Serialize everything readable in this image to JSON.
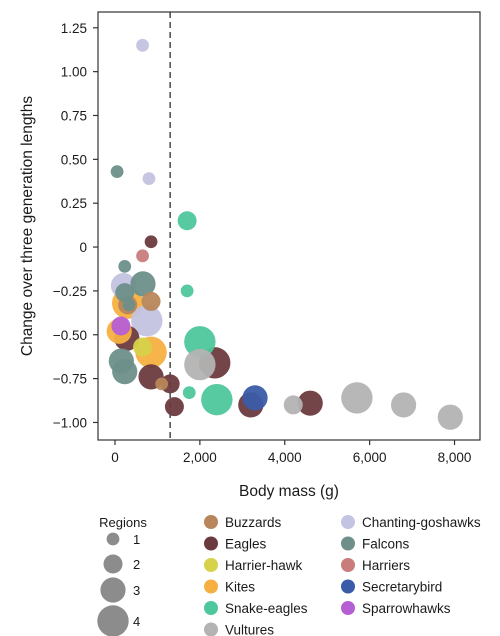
{
  "chart_data": {
    "type": "scatter",
    "xlabel": "Body mass (g)",
    "ylabel": "Change over three generation lengths",
    "xlim": [
      -400,
      8600
    ],
    "ylim": [
      -1.1,
      1.34
    ],
    "xticks": [
      0,
      2000,
      4000,
      6000,
      8000
    ],
    "xtick_labels": [
      "0",
      "2,000",
      "4,000",
      "6,000",
      "8,000"
    ],
    "yticks": [
      1.25,
      1.0,
      0.75,
      0.5,
      0.25,
      0,
      -0.25,
      -0.5,
      -0.75,
      -1.0
    ],
    "ytick_labels": [
      "1.25",
      "1.00",
      "0.75",
      "0.50",
      "0.25",
      "0",
      "−0.25",
      "−0.50",
      "−0.75",
      "−1.00"
    ],
    "reference_line": {
      "x": 1300,
      "style": "dashed"
    },
    "grid": false,
    "legend_placement": "bottom",
    "size_legend": {
      "title": "Regions",
      "values": [
        1,
        2,
        3,
        4
      ]
    },
    "series": [
      {
        "name": "Buzzards",
        "color": "#b8865a",
        "points": [
          {
            "x": 850,
            "y": -0.31,
            "regions": 2
          },
          {
            "x": 300,
            "y": -0.33,
            "regions": 2
          },
          {
            "x": 1100,
            "y": -0.78,
            "regions": 1
          }
        ]
      },
      {
        "name": "Eagles",
        "color": "#6b3a3e",
        "points": [
          {
            "x": 850,
            "y": 0.03,
            "regions": 1
          },
          {
            "x": 280,
            "y": -0.52,
            "regions": 3
          },
          {
            "x": 850,
            "y": -0.74,
            "regions": 3
          },
          {
            "x": 1300,
            "y": -0.78,
            "regions": 2
          },
          {
            "x": 1400,
            "y": -0.91,
            "regions": 2
          },
          {
            "x": 2350,
            "y": -0.66,
            "regions": 4
          },
          {
            "x": 3200,
            "y": -0.9,
            "regions": 3
          },
          {
            "x": 4600,
            "y": -0.89,
            "regions": 3
          }
        ]
      },
      {
        "name": "Harrier-hawk",
        "color": "#d6d24a",
        "points": [
          {
            "x": 650,
            "y": -0.57,
            "regions": 2
          }
        ]
      },
      {
        "name": "Kites",
        "color": "#f5b041",
        "points": [
          {
            "x": 300,
            "y": -0.32,
            "regions": 4
          },
          {
            "x": 100,
            "y": -0.48,
            "regions": 3
          },
          {
            "x": 850,
            "y": -0.6,
            "regions": 4
          }
        ]
      },
      {
        "name": "Snake-eagles",
        "color": "#4fc79c",
        "points": [
          {
            "x": 1700,
            "y": 0.15,
            "regions": 2
          },
          {
            "x": 1700,
            "y": -0.25,
            "regions": 1
          },
          {
            "x": 2000,
            "y": -0.54,
            "regions": 4
          },
          {
            "x": 1750,
            "y": -0.83,
            "regions": 1
          },
          {
            "x": 2400,
            "y": -0.87,
            "regions": 4
          }
        ]
      },
      {
        "name": "Vultures",
        "color": "#b3b3b3",
        "points": [
          {
            "x": 2000,
            "y": -0.67,
            "regions": 4
          },
          {
            "x": 4200,
            "y": -0.9,
            "regions": 2
          },
          {
            "x": 5700,
            "y": -0.86,
            "regions": 4
          },
          {
            "x": 6800,
            "y": -0.9,
            "regions": 3
          },
          {
            "x": 7900,
            "y": -0.97,
            "regions": 3
          }
        ]
      },
      {
        "name": "Chanting-goshawks",
        "color": "#c3c3e2",
        "points": [
          {
            "x": 650,
            "y": 1.15,
            "regions": 1
          },
          {
            "x": 800,
            "y": 0.39,
            "regions": 1
          },
          {
            "x": 200,
            "y": -0.22,
            "regions": 3
          },
          {
            "x": 750,
            "y": -0.42,
            "regions": 4
          }
        ]
      },
      {
        "name": "Falcons",
        "color": "#6e8f8a",
        "points": [
          {
            "x": 50,
            "y": 0.43,
            "regions": 1
          },
          {
            "x": 230,
            "y": -0.11,
            "regions": 1
          },
          {
            "x": 230,
            "y": -0.26,
            "regions": 2
          },
          {
            "x": 660,
            "y": -0.21,
            "regions": 3
          },
          {
            "x": 330,
            "y": -0.33,
            "regions": 1
          },
          {
            "x": 150,
            "y": -0.65,
            "regions": 3
          },
          {
            "x": 230,
            "y": -0.71,
            "regions": 3
          }
        ]
      },
      {
        "name": "Harriers",
        "color": "#c87c7c",
        "points": [
          {
            "x": 650,
            "y": -0.05,
            "regions": 1
          }
        ]
      },
      {
        "name": "Secretarybird",
        "color": "#3a5ca8",
        "points": [
          {
            "x": 3300,
            "y": -0.86,
            "regions": 3
          }
        ]
      },
      {
        "name": "Sparrowhawks",
        "color": "#b65fd4",
        "points": [
          {
            "x": 140,
            "y": -0.45,
            "regions": 2
          }
        ]
      }
    ]
  }
}
